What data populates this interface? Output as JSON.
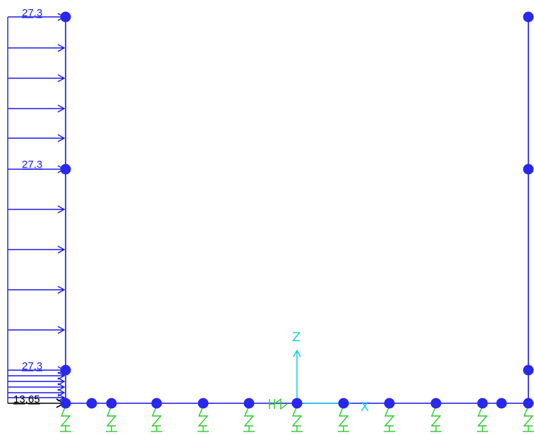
{
  "colors": {
    "frame": "#1515e8",
    "node": "#2828ee",
    "load": "#1a1ae6",
    "load_base": "#000000",
    "spring": "#22cc22",
    "axis": "#19d2e6"
  },
  "load_labels": {
    "top": "27,3",
    "middle": "27,3",
    "lower": "27,3",
    "base": "13,65"
  },
  "axes": {
    "z": "Z",
    "x": "X"
  }
}
